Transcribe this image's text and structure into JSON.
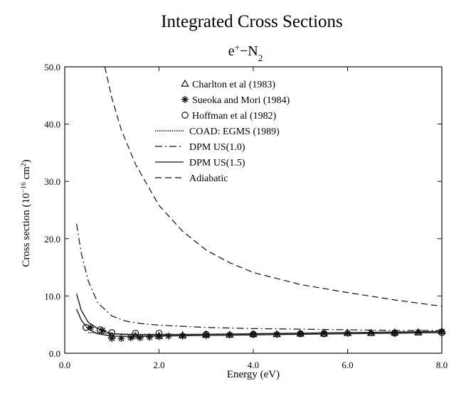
{
  "chart_data": {
    "type": "line",
    "title": "Integrated Cross Sections",
    "subtitle": "e+−N2",
    "xlabel": "Energy (eV)",
    "ylabel": "Cross section (10−16 cm2)",
    "xlim": [
      0,
      8.0
    ],
    "ylim": [
      0,
      50.0
    ],
    "xticks": [
      0.0,
      2.0,
      4.0,
      6.0,
      8.0
    ],
    "yticks": [
      0.0,
      10.0,
      20.0,
      30.0,
      40.0,
      50.0
    ],
    "xtick_labels": [
      "0.0",
      "2.0",
      "4.0",
      "6.0",
      "8.0"
    ],
    "ytick_labels": [
      "0.0",
      "10.0",
      "20.0",
      "30.0",
      "40.0",
      "50.0"
    ],
    "grid": false,
    "legend_position": "top-center",
    "series": [
      {
        "name": "Charlton et al (1983)",
        "kind": "markers",
        "marker": "triangle",
        "x": [
          1.0,
          1.5,
          2.0,
          2.5,
          3.0,
          3.5,
          4.0,
          4.5,
          5.0,
          5.5,
          6.0,
          6.5,
          7.0,
          7.5,
          8.0
        ],
        "y": [
          3.0,
          3.0,
          3.0,
          3.1,
          3.2,
          3.2,
          3.3,
          3.3,
          3.4,
          3.4,
          3.5,
          3.5,
          3.6,
          3.6,
          3.8
        ]
      },
      {
        "name": "Sueoka and Mori (1984)",
        "kind": "markers",
        "marker": "asterisk",
        "x": [
          0.55,
          0.8,
          1.0,
          1.2,
          1.4,
          1.6,
          1.8,
          2.0,
          2.2,
          2.5,
          3.0,
          3.5,
          4.0,
          4.5,
          5.0,
          5.5,
          6.0,
          6.5,
          7.0,
          7.5,
          8.0
        ],
        "y": [
          4.5,
          4.0,
          2.6,
          2.6,
          2.7,
          2.7,
          2.8,
          2.9,
          3.0,
          3.0,
          3.1,
          3.2,
          3.3,
          3.3,
          3.4,
          3.5,
          3.5,
          3.6,
          3.6,
          3.7,
          3.8
        ]
      },
      {
        "name": "Hoffman et al (1982)",
        "kind": "markers",
        "marker": "circle",
        "x": [
          0.45,
          0.75,
          1.0,
          1.5,
          2.0,
          3.0,
          4.0,
          5.0,
          5.5,
          7.0,
          8.0
        ],
        "y": [
          4.5,
          4.1,
          3.6,
          3.5,
          3.5,
          3.3,
          3.3,
          3.4,
          3.4,
          3.5,
          3.6
        ]
      },
      {
        "name": "COAD: EGMS (1989)",
        "kind": "line",
        "dash": "dotted",
        "x": [
          0.5,
          1.0,
          1.5,
          2.0,
          3.0,
          4.0,
          5.0,
          6.0,
          7.0,
          8.0
        ],
        "y": [
          3.6,
          3.4,
          3.3,
          3.3,
          3.3,
          3.4,
          3.5,
          3.6,
          3.7,
          3.8
        ]
      },
      {
        "name": "DPM US(1.0)",
        "kind": "line",
        "dash": "dashdot",
        "x": [
          0.25,
          0.35,
          0.5,
          0.7,
          1.0,
          1.3,
          1.6,
          2.0,
          2.5,
          3.0,
          3.5,
          4.0,
          5.0,
          6.0,
          7.0,
          8.0
        ],
        "y": [
          22.6,
          17.5,
          12.6,
          8.8,
          6.5,
          5.6,
          5.2,
          4.9,
          4.7,
          4.5,
          4.4,
          4.3,
          4.2,
          4.1,
          4.0,
          4.0
        ]
      },
      {
        "name": "DPM US(1.5)",
        "kind": "line",
        "dash": "solid",
        "x": [
          0.25,
          0.35,
          0.5,
          0.7,
          0.9,
          1.0,
          1.2,
          1.5,
          2.0,
          3.0,
          4.0,
          5.0,
          6.0,
          7.0,
          8.0
        ],
        "y": [
          10.4,
          7.5,
          5.4,
          4.3,
          3.7,
          3.4,
          3.3,
          3.2,
          3.2,
          3.3,
          3.4,
          3.5,
          3.6,
          3.7,
          3.8
        ]
      },
      {
        "name": "Adiabatic",
        "kind": "line",
        "dash": "dashed",
        "x": [
          0.85,
          1.0,
          1.2,
          1.5,
          2.0,
          2.5,
          3.0,
          3.5,
          4.0,
          5.0,
          6.0,
          7.0,
          8.0
        ],
        "y": [
          50.0,
          44.5,
          39.0,
          33.0,
          25.8,
          21.3,
          18.0,
          15.8,
          14.1,
          12.0,
          10.6,
          9.3,
          8.2
        ]
      },
      {
        "kind": "line",
        "dash": "solid",
        "x": [
          0.25,
          0.35,
          0.5,
          0.7,
          1.0,
          1.5,
          2.0,
          3.0,
          4.0,
          5.0,
          6.0,
          7.0,
          8.0
        ],
        "y": [
          7.7,
          5.8,
          4.2,
          3.4,
          3.0,
          2.9,
          3.0,
          3.1,
          3.2,
          3.3,
          3.4,
          3.5,
          3.6
        ]
      }
    ]
  }
}
